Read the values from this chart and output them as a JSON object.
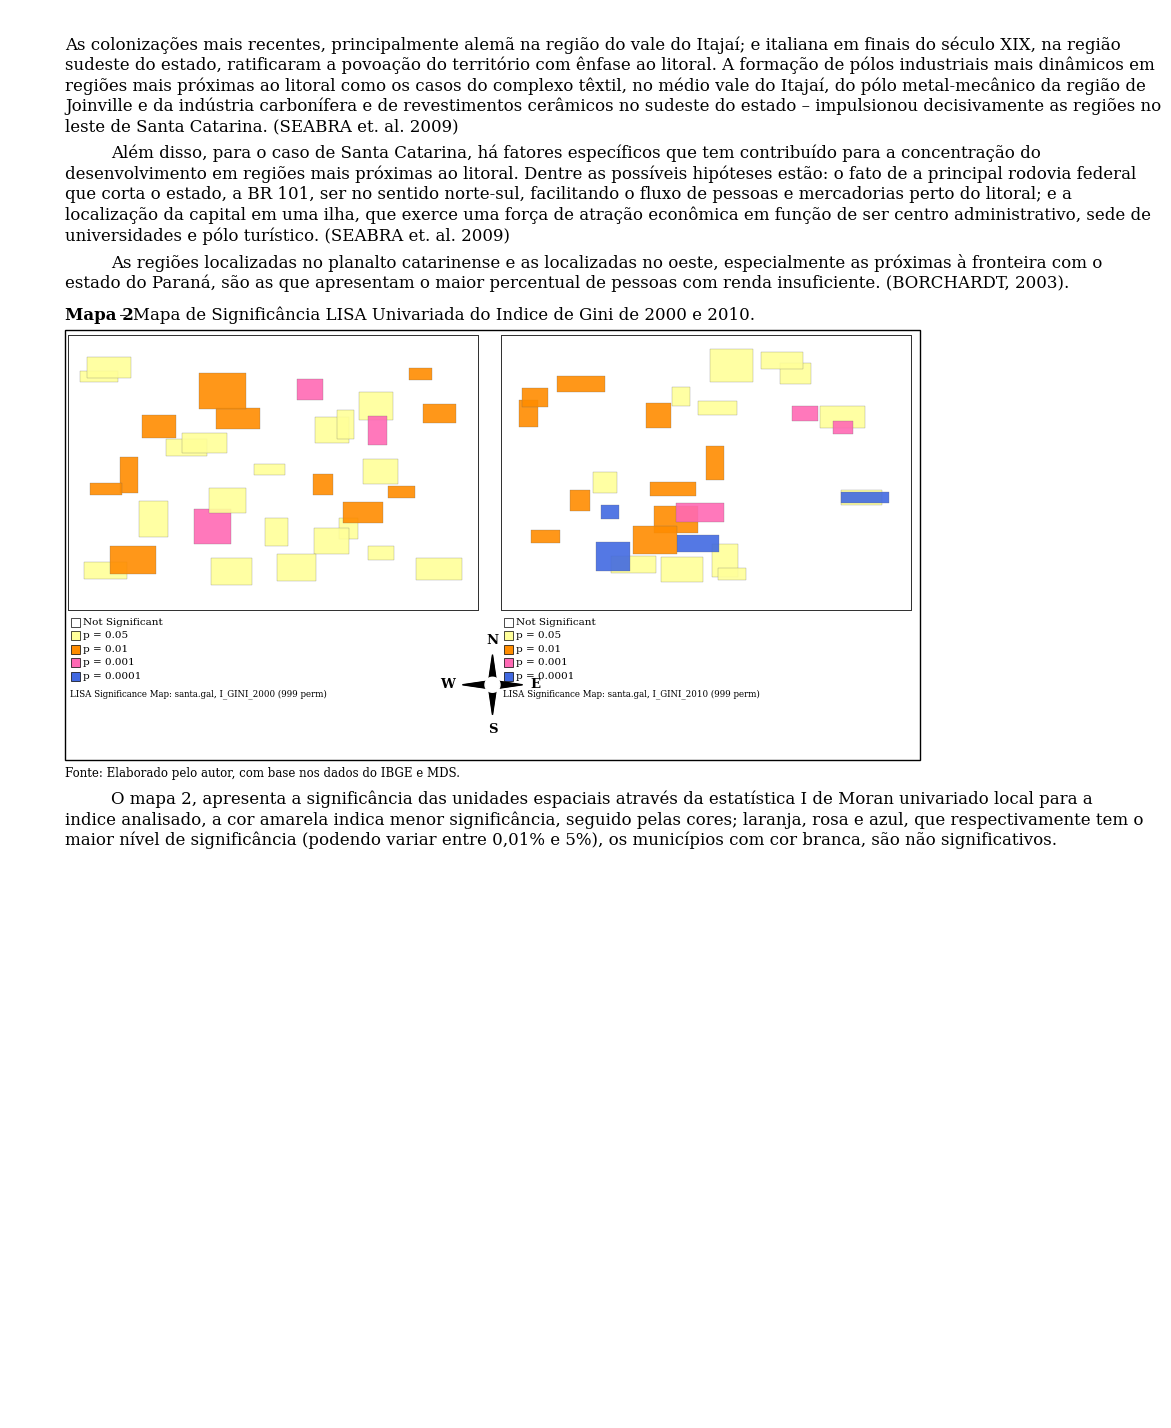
{
  "background_color": "#ffffff",
  "text_color": "#000000",
  "font_size_body": 12.0,
  "paragraphs": [
    {
      "text": "As colonizações mais recentes, principalmente alemã na região do vale do Itajaí; e italiana em finais do século XIX, na região sudeste do estado, ratificaram a povoação do território com ênfase ao litoral. A formação de pólos industriais mais dinâmicos em regiões mais próximas ao litoral como os casos do complexo têxtil, no médio vale do Itajaí, do pólo metal-mecânico da região de Joinville e da indústria carbonífera e de revestimentos cerâmicos no sudeste do estado – impulsionou decisivamente as regiões no leste de Santa Catarina. (SEABRA et. al. 2009)",
      "indent": false
    },
    {
      "text": "Além disso, para o caso de Santa Catarina, há fatores específicos que tem contribuído para a concentração do desenvolvimento em regiões mais próximas ao litoral. Dentre as possíveis hipóteses estão: o fato de a principal rodovia federal que corta o estado, a BR 101, ser no sentido norte-sul, facilitando o fluxo de pessoas e mercadorias perto do litoral; e a localização da capital em uma ilha, que exerce uma força de atração econômica em função de ser centro administrativo, sede de universidades e pólo turístico. (SEABRA et. al. 2009)",
      "indent": true
    },
    {
      "text": "As regiões localizadas no planalto catarinense e as localizadas no oeste, especialmente as próximas à fronteira com o estado do Paraná, são as que apresentam o maior percentual de pessoas com renda insuficiente. (BORCHARDT, 2003).",
      "indent": true
    }
  ],
  "map_caption_bold": "Mapa 2",
  "map_caption_rest": " – Mapa de Significância LISA Univariada do Indice de Gini de 2000 e 2010.",
  "map_source": "Fonte: Elaborado pelo autor, com base nos dados do IBGE e MDS.",
  "legend_items": [
    [
      "Not Significant",
      "#ffffff"
    ],
    [
      "p = 0.05",
      "#ffff99"
    ],
    [
      "p = 0.01",
      "#ff8c00"
    ],
    [
      "p = 0.001",
      "#ff69b4"
    ],
    [
      "p = 0.0001",
      "#4169e1"
    ]
  ],
  "lisa_label_left": "LISA Significance Map: santa.gal, I_GINI_2000 (999 perm)",
  "lisa_label_right": "LISA Significance Map: santa.gal, I_GINI_2010 (999 perm)",
  "bottom_paragraphs": [
    {
      "text": "O mapa 2, apresenta a significância das unidades espaciais através da estatística I de Moran univariado local para a indice analisado, a cor amarela indica menor significância, seguido pelas cores; laranja, rosa e azul,  que respectivamente tem o maior nível de significância (podendo variar entre 0,01% e 5%), os municípios com cor branca, são não significativos.",
      "indent": true
    }
  ]
}
